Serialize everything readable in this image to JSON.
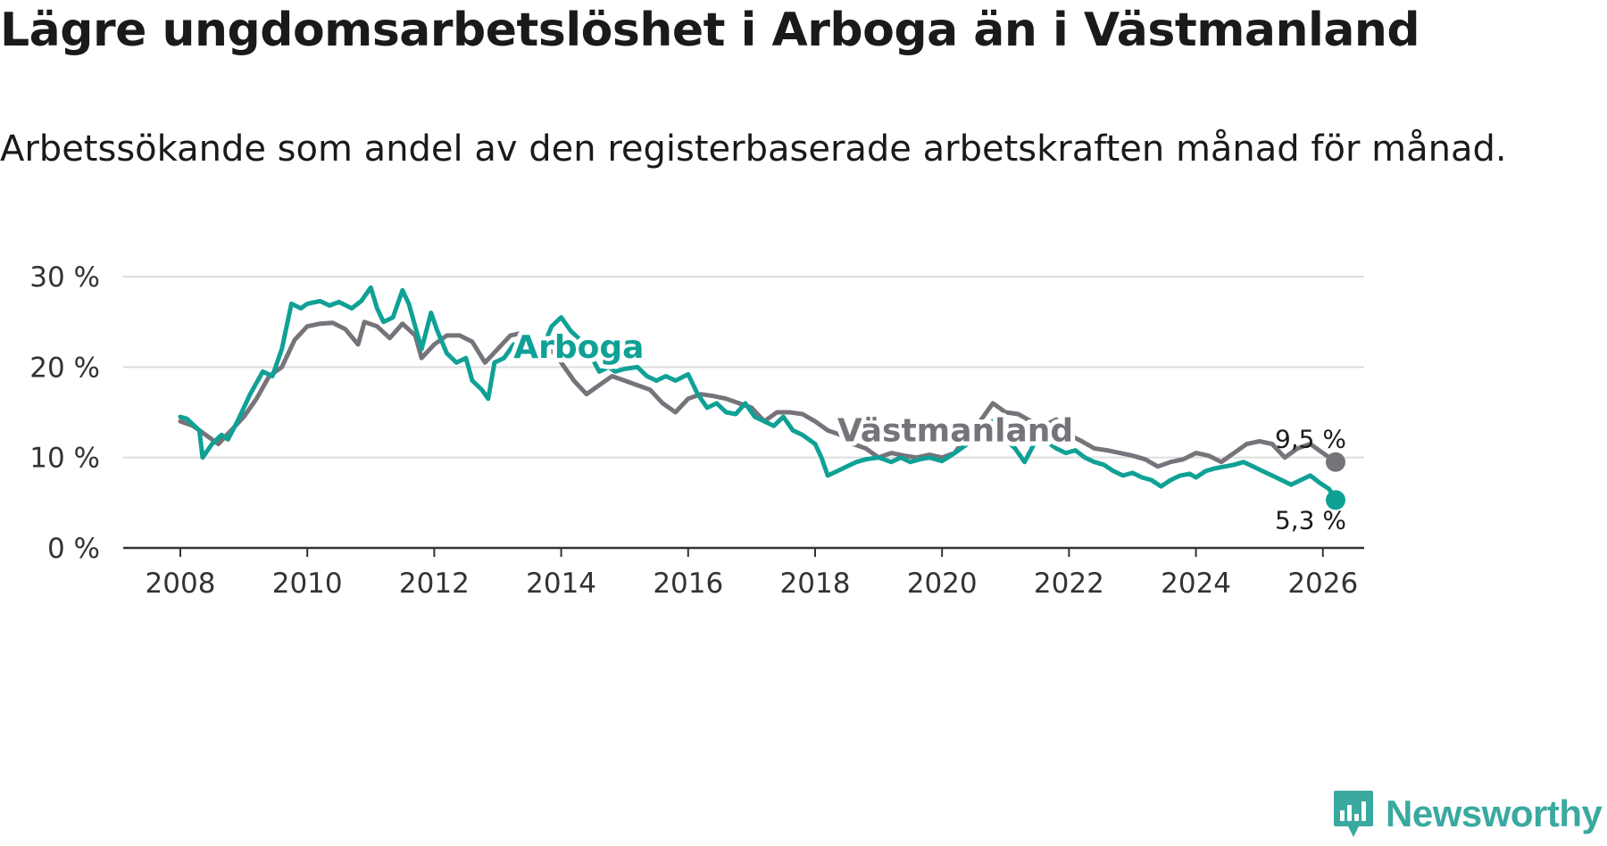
{
  "title": "Lägre ungdomsarbetslöshet i Arboga än i Västmanland",
  "subtitle": "Arbetssökande som andel av den registerbaserade arbetskraften månad för månad.",
  "brand": {
    "name": "Newsworthy",
    "icon": "newsworthy-logo-icon",
    "color": "#3aa99f"
  },
  "colors": {
    "arboga": "#0fa196",
    "vastmanland": "#76737a",
    "grid": "#dddddd",
    "axis": "#333333"
  },
  "chart_data": {
    "type": "line",
    "title": "Lägre ungdomsarbetslöshet i Arboga än i Västmanland",
    "xlabel": "",
    "ylabel": "",
    "xlim": [
      2007.1,
      2026.65
    ],
    "ylim": [
      0,
      30
    ],
    "x_ticks": [
      2008,
      2010,
      2012,
      2014,
      2016,
      2018,
      2020,
      2022,
      2024,
      2026
    ],
    "x_tick_labels": [
      "2008",
      "2010",
      "2012",
      "2014",
      "2016",
      "2018",
      "2020",
      "2022",
      "2024",
      "2026"
    ],
    "y_ticks": [
      0,
      10,
      20,
      30
    ],
    "y_tick_labels": [
      "0 %",
      "10 %",
      "20 %",
      "30 %"
    ],
    "grid": "horizontal",
    "series": [
      {
        "name": "Västmanland",
        "color": "#76737a",
        "label": "Västmanland",
        "end_label": "9,5 %",
        "end_value": 9.5,
        "points": [
          [
            2008.0,
            14.0
          ],
          [
            2008.2,
            13.5
          ],
          [
            2008.4,
            12.5
          ],
          [
            2008.6,
            11.5
          ],
          [
            2008.8,
            13.0
          ],
          [
            2009.0,
            14.5
          ],
          [
            2009.2,
            16.5
          ],
          [
            2009.4,
            19.0
          ],
          [
            2009.6,
            20.0
          ],
          [
            2009.8,
            23.0
          ],
          [
            2010.0,
            24.5
          ],
          [
            2010.2,
            24.8
          ],
          [
            2010.4,
            24.9
          ],
          [
            2010.6,
            24.2
          ],
          [
            2010.8,
            22.5
          ],
          [
            2010.9,
            25.0
          ],
          [
            2011.1,
            24.5
          ],
          [
            2011.3,
            23.2
          ],
          [
            2011.5,
            24.8
          ],
          [
            2011.7,
            23.5
          ],
          [
            2011.8,
            21.0
          ],
          [
            2012.0,
            22.5
          ],
          [
            2012.2,
            23.5
          ],
          [
            2012.4,
            23.5
          ],
          [
            2012.6,
            22.8
          ],
          [
            2012.8,
            20.5
          ],
          [
            2013.0,
            22.0
          ],
          [
            2013.2,
            23.5
          ],
          [
            2013.4,
            23.8
          ],
          [
            2013.6,
            22.5
          ],
          [
            2013.8,
            22.3
          ],
          [
            2014.0,
            20.5
          ],
          [
            2014.2,
            18.5
          ],
          [
            2014.4,
            17.0
          ],
          [
            2014.6,
            18.0
          ],
          [
            2014.8,
            19.0
          ],
          [
            2015.0,
            18.5
          ],
          [
            2015.2,
            18.0
          ],
          [
            2015.4,
            17.5
          ],
          [
            2015.6,
            16.0
          ],
          [
            2015.8,
            15.0
          ],
          [
            2016.0,
            16.5
          ],
          [
            2016.2,
            17.0
          ],
          [
            2016.4,
            16.8
          ],
          [
            2016.6,
            16.5
          ],
          [
            2016.8,
            16.0
          ],
          [
            2017.0,
            15.5
          ],
          [
            2017.2,
            14.0
          ],
          [
            2017.4,
            15.0
          ],
          [
            2017.6,
            15.0
          ],
          [
            2017.8,
            14.8
          ],
          [
            2018.0,
            14.0
          ],
          [
            2018.2,
            13.0
          ],
          [
            2018.4,
            12.5
          ],
          [
            2018.6,
            11.5
          ],
          [
            2018.8,
            11.0
          ],
          [
            2019.0,
            10.0
          ],
          [
            2019.2,
            10.5
          ],
          [
            2019.4,
            10.2
          ],
          [
            2019.6,
            10.0
          ],
          [
            2019.8,
            10.3
          ],
          [
            2020.0,
            10.0
          ],
          [
            2020.2,
            10.5
          ],
          [
            2020.4,
            12.5
          ],
          [
            2020.6,
            14.0
          ],
          [
            2020.8,
            16.0
          ],
          [
            2021.0,
            15.0
          ],
          [
            2021.2,
            14.8
          ],
          [
            2021.4,
            14.0
          ],
          [
            2021.6,
            13.5
          ],
          [
            2021.8,
            14.2
          ],
          [
            2022.0,
            12.5
          ],
          [
            2022.2,
            11.8
          ],
          [
            2022.4,
            11.0
          ],
          [
            2022.6,
            10.8
          ],
          [
            2022.8,
            10.5
          ],
          [
            2023.0,
            10.2
          ],
          [
            2023.2,
            9.8
          ],
          [
            2023.4,
            9.0
          ],
          [
            2023.6,
            9.5
          ],
          [
            2023.8,
            9.8
          ],
          [
            2024.0,
            10.5
          ],
          [
            2024.2,
            10.2
          ],
          [
            2024.4,
            9.5
          ],
          [
            2024.6,
            10.5
          ],
          [
            2024.8,
            11.5
          ],
          [
            2025.0,
            11.8
          ],
          [
            2025.2,
            11.5
          ],
          [
            2025.4,
            10.0
          ],
          [
            2025.6,
            11.0
          ],
          [
            2025.8,
            11.5
          ],
          [
            2026.0,
            10.5
          ],
          [
            2026.2,
            9.5
          ]
        ]
      },
      {
        "name": "Arboga",
        "color": "#0fa196",
        "label": "Arboga",
        "end_label": "5,3 %",
        "end_value": 5.3,
        "points": [
          [
            2008.0,
            14.5
          ],
          [
            2008.1,
            14.3
          ],
          [
            2008.3,
            13.0
          ],
          [
            2008.35,
            10.0
          ],
          [
            2008.5,
            11.5
          ],
          [
            2008.65,
            12.5
          ],
          [
            2008.75,
            12.0
          ],
          [
            2008.9,
            14.0
          ],
          [
            2009.1,
            17.0
          ],
          [
            2009.3,
            19.5
          ],
          [
            2009.45,
            19.0
          ],
          [
            2009.6,
            22.0
          ],
          [
            2009.75,
            27.0
          ],
          [
            2009.9,
            26.5
          ],
          [
            2010.0,
            27.0
          ],
          [
            2010.2,
            27.3
          ],
          [
            2010.35,
            26.8
          ],
          [
            2010.5,
            27.2
          ],
          [
            2010.7,
            26.5
          ],
          [
            2010.85,
            27.3
          ],
          [
            2011.0,
            28.8
          ],
          [
            2011.1,
            26.5
          ],
          [
            2011.2,
            25.0
          ],
          [
            2011.35,
            25.5
          ],
          [
            2011.5,
            28.5
          ],
          [
            2011.6,
            27.0
          ],
          [
            2011.8,
            22.0
          ],
          [
            2011.95,
            26.0
          ],
          [
            2012.05,
            24.0
          ],
          [
            2012.2,
            21.5
          ],
          [
            2012.35,
            20.5
          ],
          [
            2012.5,
            21.0
          ],
          [
            2012.6,
            18.5
          ],
          [
            2012.75,
            17.5
          ],
          [
            2012.85,
            16.5
          ],
          [
            2012.95,
            20.5
          ],
          [
            2013.1,
            21.0
          ],
          [
            2013.25,
            22.5
          ],
          [
            2013.4,
            22.3
          ],
          [
            2013.55,
            22.8
          ],
          [
            2013.7,
            22.0
          ],
          [
            2013.85,
            24.5
          ],
          [
            2014.0,
            25.5
          ],
          [
            2014.15,
            24.0
          ],
          [
            2014.3,
            23.0
          ],
          [
            2014.45,
            21.5
          ],
          [
            2014.6,
            19.5
          ],
          [
            2014.75,
            20.0
          ],
          [
            2014.85,
            19.5
          ],
          [
            2015.0,
            19.8
          ],
          [
            2015.2,
            20.0
          ],
          [
            2015.35,
            19.0
          ],
          [
            2015.5,
            18.5
          ],
          [
            2015.65,
            19.0
          ],
          [
            2015.8,
            18.5
          ],
          [
            2016.0,
            19.2
          ],
          [
            2016.15,
            17.0
          ],
          [
            2016.3,
            15.5
          ],
          [
            2016.45,
            16.0
          ],
          [
            2016.6,
            15.0
          ],
          [
            2016.75,
            14.8
          ],
          [
            2016.9,
            16.0
          ],
          [
            2017.05,
            14.5
          ],
          [
            2017.2,
            14.0
          ],
          [
            2017.35,
            13.5
          ],
          [
            2017.5,
            14.5
          ],
          [
            2017.65,
            13.0
          ],
          [
            2017.8,
            12.5
          ],
          [
            2018.0,
            11.5
          ],
          [
            2018.1,
            10.0
          ],
          [
            2018.2,
            8.0
          ],
          [
            2018.35,
            8.5
          ],
          [
            2018.5,
            9.0
          ],
          [
            2018.65,
            9.5
          ],
          [
            2018.8,
            9.8
          ],
          [
            2019.0,
            10.0
          ],
          [
            2019.2,
            9.5
          ],
          [
            2019.35,
            10.0
          ],
          [
            2019.5,
            9.5
          ],
          [
            2019.65,
            9.8
          ],
          [
            2019.8,
            10.0
          ],
          [
            2020.0,
            9.6
          ],
          [
            2020.2,
            10.5
          ],
          [
            2020.4,
            11.5
          ],
          [
            2020.6,
            13.5
          ],
          [
            2020.8,
            14.0
          ],
          [
            2021.0,
            12.0
          ],
          [
            2021.15,
            11.0
          ],
          [
            2021.3,
            9.5
          ],
          [
            2021.45,
            11.5
          ],
          [
            2021.6,
            12.0
          ],
          [
            2021.8,
            11.0
          ],
          [
            2021.95,
            10.5
          ],
          [
            2022.1,
            10.8
          ],
          [
            2022.25,
            10.0
          ],
          [
            2022.4,
            9.5
          ],
          [
            2022.55,
            9.2
          ],
          [
            2022.7,
            8.5
          ],
          [
            2022.85,
            8.0
          ],
          [
            2023.0,
            8.3
          ],
          [
            2023.15,
            7.8
          ],
          [
            2023.3,
            7.5
          ],
          [
            2023.45,
            6.8
          ],
          [
            2023.6,
            7.5
          ],
          [
            2023.75,
            8.0
          ],
          [
            2023.9,
            8.2
          ],
          [
            2024.0,
            7.8
          ],
          [
            2024.15,
            8.5
          ],
          [
            2024.3,
            8.8
          ],
          [
            2024.45,
            9.0
          ],
          [
            2024.6,
            9.2
          ],
          [
            2024.75,
            9.5
          ],
          [
            2024.9,
            9.0
          ],
          [
            2025.05,
            8.5
          ],
          [
            2025.2,
            8.0
          ],
          [
            2025.35,
            7.5
          ],
          [
            2025.5,
            7.0
          ],
          [
            2025.65,
            7.5
          ],
          [
            2025.8,
            8.0
          ],
          [
            2025.95,
            7.2
          ],
          [
            2026.1,
            6.5
          ],
          [
            2026.2,
            5.3
          ]
        ]
      }
    ]
  }
}
